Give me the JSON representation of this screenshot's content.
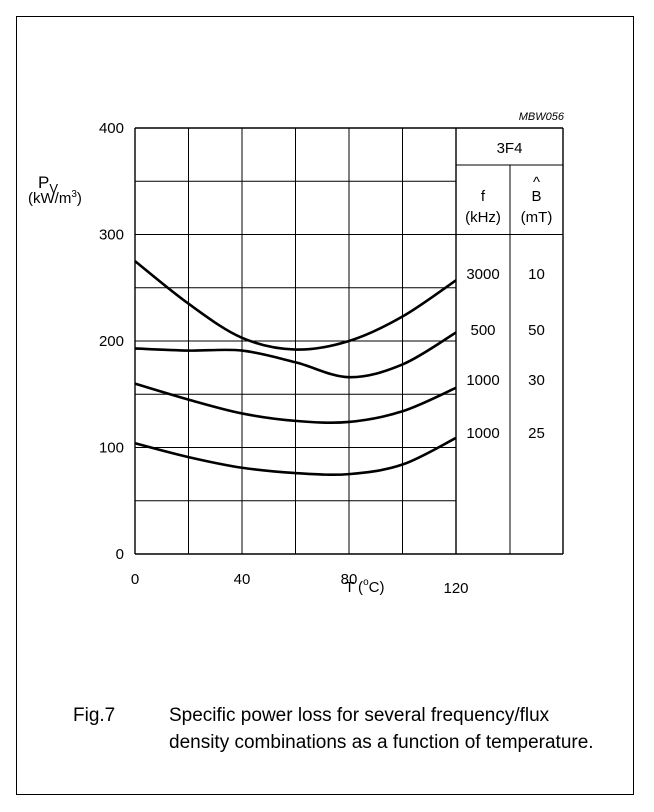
{
  "chart_data": {
    "type": "line",
    "code": "MBW056",
    "ylabel_symbol": "P",
    "ylabel_sub": "V",
    "ylabel_unit": "(kW/m",
    "ylabel_unit_sup": "3",
    "ylabel_unit_close": ")",
    "xlabel": "T  (",
    "xlabel_sup": "o",
    "xlabel_close": "C)",
    "xlim": [
      0,
      120
    ],
    "ylim": [
      0,
      400
    ],
    "x_ticks": [
      "0",
      "40",
      "80",
      "120"
    ],
    "y_ticks": [
      "0",
      "100",
      "200",
      "300",
      "400"
    ],
    "grid": true,
    "table": {
      "material": "3F4",
      "col1_header": "f",
      "col1_unit": "(kHz)",
      "col2_header": "B",
      "col2_hat": "^",
      "col2_unit": "(mT)"
    },
    "series": [
      {
        "f": "3000",
        "B": "10",
        "x": [
          0,
          20,
          40,
          60,
          80,
          100,
          120
        ],
        "y": [
          275,
          235,
          203,
          192,
          200,
          223,
          257
        ]
      },
      {
        "f": "500",
        "B": "50",
        "x": [
          0,
          20,
          40,
          60,
          80,
          100,
          120
        ],
        "y": [
          193,
          191,
          191,
          180,
          166,
          178,
          208
        ]
      },
      {
        "f": "1000",
        "B": "30",
        "x": [
          0,
          20,
          40,
          60,
          80,
          100,
          120
        ],
        "y": [
          160,
          145,
          132,
          125,
          124,
          134,
          156
        ]
      },
      {
        "f": "1000",
        "B": "25",
        "x": [
          0,
          20,
          40,
          60,
          80,
          100,
          120
        ],
        "y": [
          104,
          91,
          81,
          76,
          75,
          84,
          109
        ]
      }
    ]
  },
  "caption": {
    "number": "Fig.7",
    "text": "Specific power loss for several frequency/flux density combinations as a function of temperature."
  }
}
